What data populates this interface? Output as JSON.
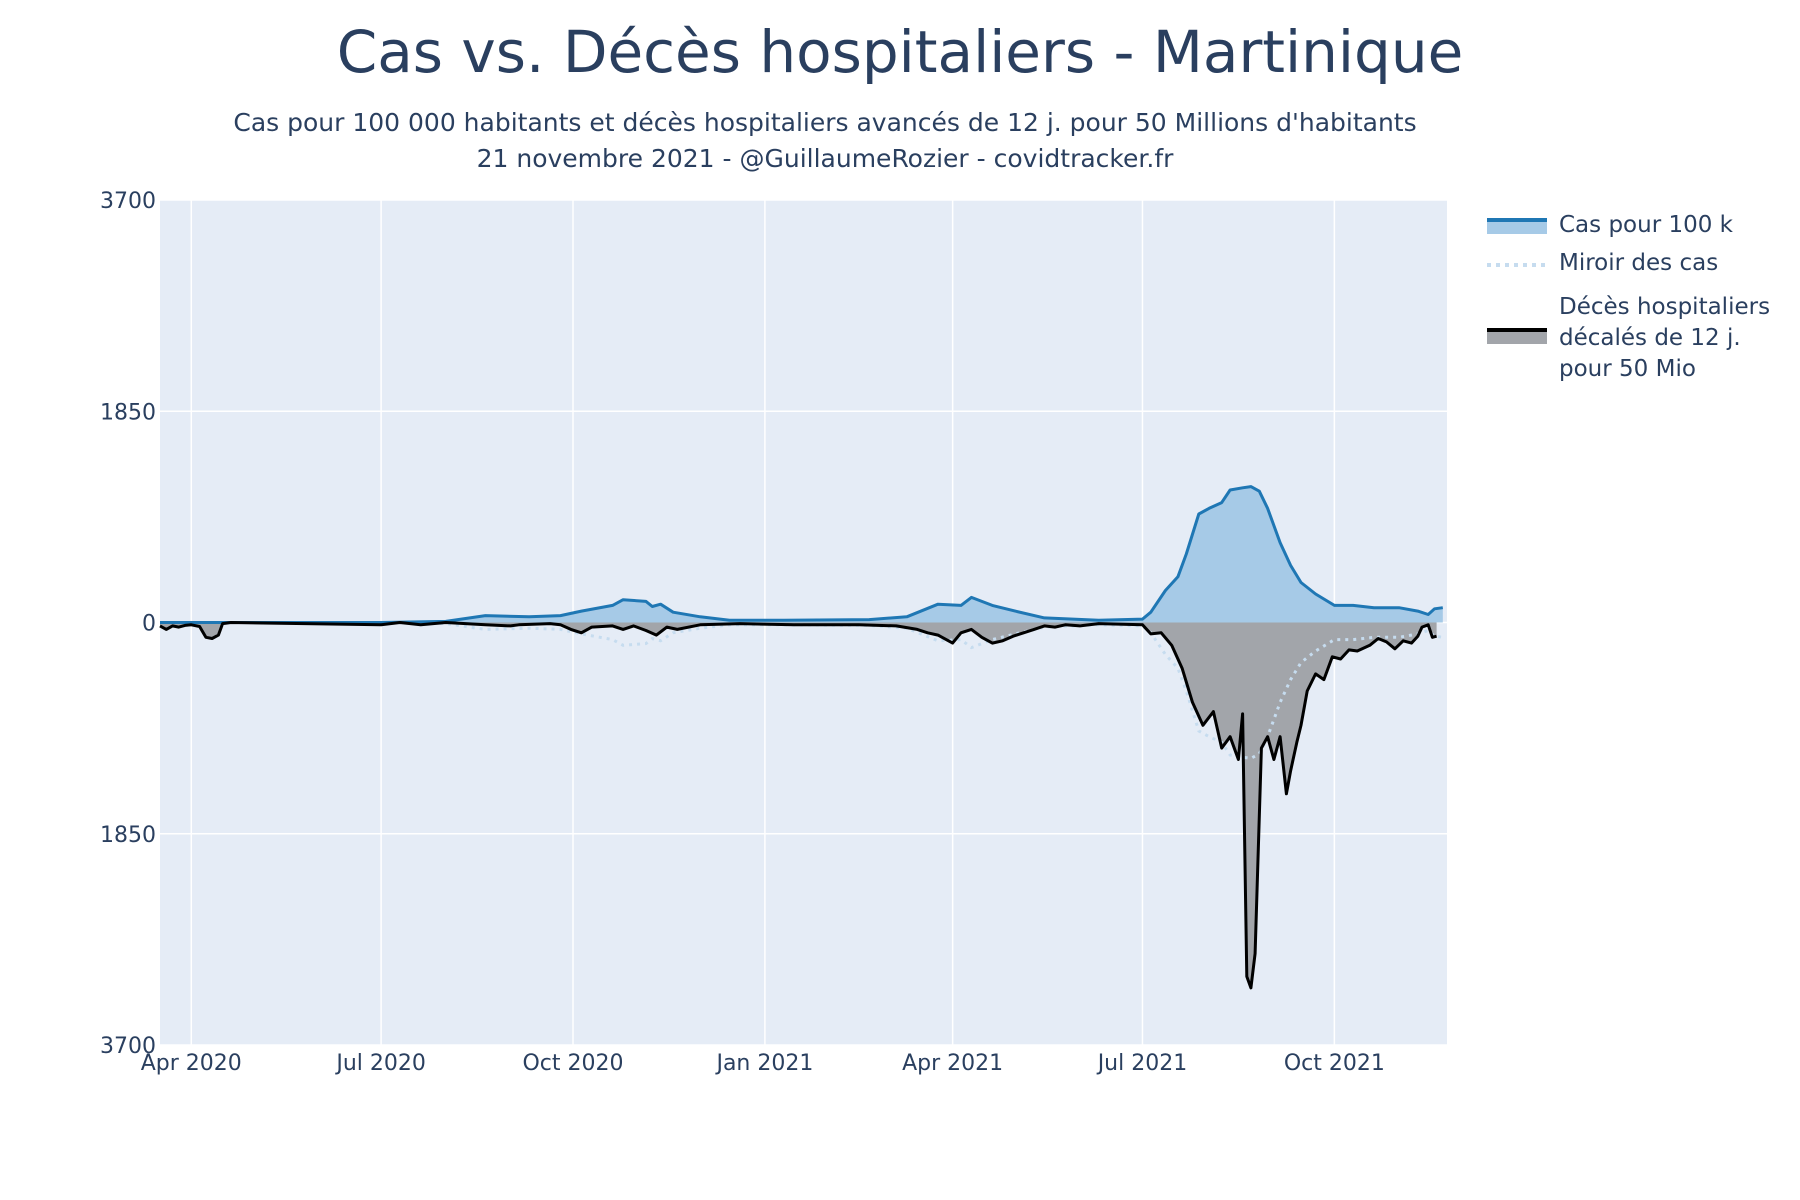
{
  "title": "Cas vs. Décès hospitaliers - Martinique",
  "subtitle_line1": "Cas pour 100 000 habitants et décès hospitaliers avancés de 12 j. pour 50 Millions d'habitants",
  "subtitle_line2": "21 novembre 2021 - @GuillaumeRozier - covidtracker.fr",
  "colors": {
    "plot_bg": "#e5ecf6",
    "grid": "#ffffff",
    "cases_line": "#1f77b4",
    "cases_fill": "#a6cae7",
    "deaths_line": "#000000",
    "deaths_fill": "#a2a5aa",
    "mirror": "#c6dcef"
  },
  "legend": [
    {
      "label": "Cas pour 100 k",
      "symbol": "cases"
    },
    {
      "label": "Miroir des cas",
      "symbol": "mirror"
    },
    {
      "label": "Décès hospitaliers\ndécalés de 12 j.\npour 50 Mio",
      "symbol": "deaths"
    }
  ],
  "chart_data": {
    "type": "area",
    "x_type": "date",
    "x_range": [
      "2020-03-17",
      "2021-11-24"
    ],
    "y_range": [
      -3700,
      3700
    ],
    "y_ticks": [
      {
        "value": 3700,
        "label": "3700"
      },
      {
        "value": 1850,
        "label": "1850"
      },
      {
        "value": 0,
        "label": "0"
      },
      {
        "value": -1850,
        "label": "1850"
      },
      {
        "value": -3700,
        "label": "3700"
      }
    ],
    "x_ticks": [
      {
        "date": "2020-04-01",
        "label": "Apr 2020"
      },
      {
        "date": "2020-07-01",
        "label": "Jul 2020"
      },
      {
        "date": "2020-10-01",
        "label": "Oct 2020"
      },
      {
        "date": "2021-01-01",
        "label": "Jan 2021"
      },
      {
        "date": "2021-04-01",
        "label": "Apr 2021"
      },
      {
        "date": "2021-07-01",
        "label": "Jul 2021"
      },
      {
        "date": "2021-10-01",
        "label": "Oct 2021"
      }
    ],
    "series": [
      {
        "name": "Cas pour 100 k",
        "style": "line-fill",
        "points": [
          [
            "2020-03-17",
            0
          ],
          [
            "2020-07-01",
            0
          ],
          [
            "2020-08-01",
            10
          ],
          [
            "2020-08-20",
            60
          ],
          [
            "2020-09-10",
            50
          ],
          [
            "2020-09-25",
            60
          ],
          [
            "2020-10-05",
            100
          ],
          [
            "2020-10-20",
            150
          ],
          [
            "2020-10-25",
            200
          ],
          [
            "2020-11-05",
            185
          ],
          [
            "2020-11-08",
            140
          ],
          [
            "2020-11-12",
            160
          ],
          [
            "2020-11-18",
            90
          ],
          [
            "2020-12-01",
            50
          ],
          [
            "2020-12-15",
            20
          ],
          [
            "2021-01-10",
            20
          ],
          [
            "2021-02-20",
            25
          ],
          [
            "2021-03-10",
            50
          ],
          [
            "2021-03-25",
            160
          ],
          [
            "2021-04-05",
            150
          ],
          [
            "2021-04-10",
            220
          ],
          [
            "2021-04-20",
            150
          ],
          [
            "2021-05-01",
            100
          ],
          [
            "2021-05-15",
            40
          ],
          [
            "2021-06-10",
            20
          ],
          [
            "2021-07-01",
            30
          ],
          [
            "2021-07-05",
            90
          ],
          [
            "2021-07-12",
            280
          ],
          [
            "2021-07-18",
            400
          ],
          [
            "2021-07-22",
            600
          ],
          [
            "2021-07-28",
            950
          ],
          [
            "2021-08-02",
            1000
          ],
          [
            "2021-08-08",
            1050
          ],
          [
            "2021-08-12",
            1160
          ],
          [
            "2021-08-18",
            1180
          ],
          [
            "2021-08-22",
            1190
          ],
          [
            "2021-08-26",
            1150
          ],
          [
            "2021-08-30",
            1000
          ],
          [
            "2021-09-05",
            700
          ],
          [
            "2021-09-10",
            500
          ],
          [
            "2021-09-15",
            350
          ],
          [
            "2021-09-22",
            250
          ],
          [
            "2021-10-01",
            150
          ],
          [
            "2021-10-10",
            150
          ],
          [
            "2021-10-20",
            130
          ],
          [
            "2021-11-01",
            130
          ],
          [
            "2021-11-10",
            100
          ],
          [
            "2021-11-15",
            70
          ],
          [
            "2021-11-18",
            120
          ],
          [
            "2021-11-22",
            130
          ]
        ]
      },
      {
        "name": "Miroir des cas",
        "style": "dotted",
        "points": [
          [
            "2020-03-17",
            0
          ],
          [
            "2020-07-01",
            0
          ],
          [
            "2020-08-01",
            -10
          ],
          [
            "2020-08-20",
            -60
          ],
          [
            "2020-09-10",
            -50
          ],
          [
            "2020-09-25",
            -60
          ],
          [
            "2020-10-05",
            -100
          ],
          [
            "2020-10-20",
            -150
          ],
          [
            "2020-10-25",
            -200
          ],
          [
            "2020-11-05",
            -185
          ],
          [
            "2020-11-08",
            -140
          ],
          [
            "2020-11-12",
            -160
          ],
          [
            "2020-11-18",
            -90
          ],
          [
            "2020-12-01",
            -50
          ],
          [
            "2020-12-15",
            -20
          ],
          [
            "2021-01-10",
            -20
          ],
          [
            "2021-02-20",
            -25
          ],
          [
            "2021-03-10",
            -50
          ],
          [
            "2021-03-25",
            -160
          ],
          [
            "2021-04-05",
            -150
          ],
          [
            "2021-04-10",
            -220
          ],
          [
            "2021-04-20",
            -150
          ],
          [
            "2021-05-01",
            -100
          ],
          [
            "2021-05-15",
            -40
          ],
          [
            "2021-06-10",
            -20
          ],
          [
            "2021-07-01",
            -30
          ],
          [
            "2021-07-05",
            -90
          ],
          [
            "2021-07-12",
            -280
          ],
          [
            "2021-07-18",
            -400
          ],
          [
            "2021-07-22",
            -600
          ],
          [
            "2021-07-28",
            -950
          ],
          [
            "2021-08-02",
            -1000
          ],
          [
            "2021-08-08",
            -1050
          ],
          [
            "2021-08-12",
            -1160
          ],
          [
            "2021-08-18",
            -1180
          ],
          [
            "2021-08-22",
            -1190
          ],
          [
            "2021-08-26",
            -1150
          ],
          [
            "2021-08-30",
            -1000
          ],
          [
            "2021-09-05",
            -700
          ],
          [
            "2021-09-10",
            -500
          ],
          [
            "2021-09-15",
            -350
          ],
          [
            "2021-09-22",
            -250
          ],
          [
            "2021-10-01",
            -150
          ],
          [
            "2021-10-10",
            -150
          ],
          [
            "2021-10-20",
            -130
          ],
          [
            "2021-11-01",
            -130
          ],
          [
            "2021-11-10",
            -100
          ],
          [
            "2021-11-15",
            -70
          ],
          [
            "2021-11-18",
            -120
          ],
          [
            "2021-11-22",
            -130
          ]
        ]
      },
      {
        "name": "Décès hospitaliers décalés de 12 j. pour 50 Mio",
        "style": "line-fill",
        "points": [
          [
            "2020-03-17",
            -30
          ],
          [
            "2020-03-20",
            -60
          ],
          [
            "2020-03-23",
            -30
          ],
          [
            "2020-03-26",
            -40
          ],
          [
            "2020-03-29",
            -25
          ],
          [
            "2020-04-01",
            -20
          ],
          [
            "2020-04-05",
            -35
          ],
          [
            "2020-04-08",
            -130
          ],
          [
            "2020-04-11",
            -140
          ],
          [
            "2020-04-14",
            -110
          ],
          [
            "2020-04-16",
            -10
          ],
          [
            "2020-04-20",
            0
          ],
          [
            "2020-07-01",
            -20
          ],
          [
            "2020-07-10",
            0
          ],
          [
            "2020-07-20",
            -20
          ],
          [
            "2020-08-01",
            0
          ],
          [
            "2020-08-20",
            -20
          ],
          [
            "2020-09-01",
            -30
          ],
          [
            "2020-09-05",
            -20
          ],
          [
            "2020-09-20",
            -10
          ],
          [
            "2020-09-25",
            -20
          ],
          [
            "2020-09-30",
            -60
          ],
          [
            "2020-10-05",
            -90
          ],
          [
            "2020-10-10",
            -40
          ],
          [
            "2020-10-20",
            -30
          ],
          [
            "2020-10-25",
            -60
          ],
          [
            "2020-10-30",
            -30
          ],
          [
            "2020-11-05",
            -70
          ],
          [
            "2020-11-10",
            -110
          ],
          [
            "2020-11-15",
            -40
          ],
          [
            "2020-11-20",
            -60
          ],
          [
            "2020-12-01",
            -20
          ],
          [
            "2020-12-20",
            -10
          ],
          [
            "2021-01-15",
            -20
          ],
          [
            "2021-02-15",
            -20
          ],
          [
            "2021-03-05",
            -30
          ],
          [
            "2021-03-15",
            -60
          ],
          [
            "2021-03-20",
            -90
          ],
          [
            "2021-03-25",
            -110
          ],
          [
            "2021-04-01",
            -180
          ],
          [
            "2021-04-05",
            -90
          ],
          [
            "2021-04-10",
            -60
          ],
          [
            "2021-04-15",
            -130
          ],
          [
            "2021-04-20",
            -180
          ],
          [
            "2021-04-25",
            -160
          ],
          [
            "2021-04-30",
            -120
          ],
          [
            "2021-05-05",
            -90
          ],
          [
            "2021-05-10",
            -60
          ],
          [
            "2021-05-15",
            -30
          ],
          [
            "2021-05-20",
            -40
          ],
          [
            "2021-05-25",
            -20
          ],
          [
            "2021-06-01",
            -30
          ],
          [
            "2021-06-10",
            -10
          ],
          [
            "2021-07-01",
            -20
          ],
          [
            "2021-07-05",
            -100
          ],
          [
            "2021-07-10",
            -90
          ],
          [
            "2021-07-15",
            -200
          ],
          [
            "2021-07-20",
            -400
          ],
          [
            "2021-07-25",
            -700
          ],
          [
            "2021-07-30",
            -900
          ],
          [
            "2021-08-04",
            -780
          ],
          [
            "2021-08-08",
            -1100
          ],
          [
            "2021-08-12",
            -1000
          ],
          [
            "2021-08-16",
            -1200
          ],
          [
            "2021-08-18",
            -800
          ],
          [
            "2021-08-20",
            -3100
          ],
          [
            "2021-08-22",
            -3200
          ],
          [
            "2021-08-24",
            -2900
          ],
          [
            "2021-08-27",
            -1100
          ],
          [
            "2021-08-30",
            -1000
          ],
          [
            "2021-09-02",
            -1200
          ],
          [
            "2021-09-05",
            -1000
          ],
          [
            "2021-09-08",
            -1500
          ],
          [
            "2021-09-10",
            -1300
          ],
          [
            "2021-09-13",
            -1050
          ],
          [
            "2021-09-15",
            -900
          ],
          [
            "2021-09-18",
            -600
          ],
          [
            "2021-09-22",
            -450
          ],
          [
            "2021-09-26",
            -500
          ],
          [
            "2021-09-30",
            -300
          ],
          [
            "2021-10-04",
            -320
          ],
          [
            "2021-10-08",
            -240
          ],
          [
            "2021-10-12",
            -250
          ],
          [
            "2021-10-18",
            -200
          ],
          [
            "2021-10-22",
            -140
          ],
          [
            "2021-10-26",
            -170
          ],
          [
            "2021-10-30",
            -230
          ],
          [
            "2021-11-03",
            -160
          ],
          [
            "2021-11-07",
            -180
          ],
          [
            "2021-11-10",
            -120
          ],
          [
            "2021-11-12",
            -40
          ],
          [
            "2021-11-15",
            -20
          ],
          [
            "2021-11-17",
            -130
          ],
          [
            "2021-11-19",
            -120
          ]
        ]
      }
    ]
  }
}
